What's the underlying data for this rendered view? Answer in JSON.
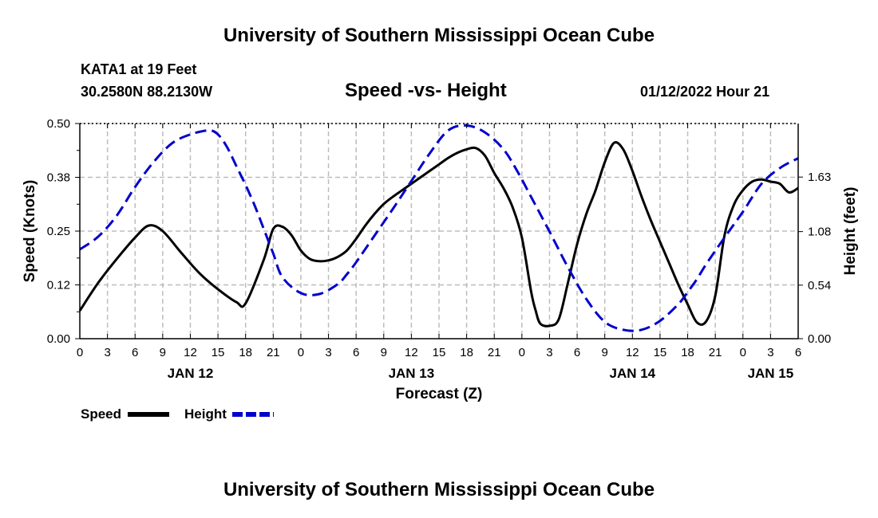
{
  "header": {
    "title": "University of Southern Mississippi Ocean Cube",
    "station": "KATA1 at 19 Feet",
    "coords": "30.2580N  88.2130W",
    "subtitle": "Speed -vs- Height",
    "datetime": "01/12/2022 Hour 21"
  },
  "footer": {
    "title": "University of Southern Mississippi Ocean Cube"
  },
  "legend": {
    "speed_label": "Speed",
    "height_label": "Height"
  },
  "colors": {
    "speed": "#000000",
    "height": "#0000cc",
    "grid": "#bdbdbd"
  },
  "chart_data": {
    "type": "line",
    "title": "Speed -vs- Height",
    "xlabel": "Forecast (Z)",
    "ylabel": "Speed (Knots)",
    "y2label": "Height (feet)",
    "x_unit": "hours from 01/12/2022 00Z",
    "xlim": [
      0,
      78
    ],
    "ylim": [
      0,
      0.5
    ],
    "y2lim": [
      0,
      2.17
    ],
    "yticks": [
      0.0,
      0.125,
      0.25,
      0.375,
      0.5
    ],
    "yticklabels": [
      "0.00",
      "0.12",
      "0.25",
      "0.38",
      "0.50"
    ],
    "y2ticks": [
      0.0,
      0.54,
      1.08,
      1.63
    ],
    "y2ticklabels": [
      "0.00",
      "0.54",
      "1.08",
      "1.63"
    ],
    "xticks": [
      0,
      3,
      6,
      9,
      12,
      15,
      18,
      21,
      24,
      27,
      30,
      33,
      36,
      39,
      42,
      45,
      48,
      51,
      54,
      57,
      60,
      63,
      66,
      69,
      72,
      75,
      78
    ],
    "xticklabels": [
      "0",
      "3",
      "6",
      "9",
      "12",
      "15",
      "18",
      "21",
      "0",
      "3",
      "6",
      "9",
      "12",
      "15",
      "18",
      "21",
      "0",
      "3",
      "6",
      "9",
      "12",
      "15",
      "18",
      "21",
      "0",
      "3",
      "6"
    ],
    "day_labels": [
      {
        "label": "JAN 12",
        "x": 12
      },
      {
        "label": "JAN 13",
        "x": 36
      },
      {
        "label": "JAN 14",
        "x": 60
      },
      {
        "label": "JAN 15",
        "x": 75
      }
    ],
    "legend_position": "bottom-left",
    "series": [
      {
        "name": "Speed",
        "axis": "left",
        "style": "solid",
        "x": [
          0,
          2,
          4,
          6,
          7.5,
          9,
          11,
          13,
          15,
          17,
          18,
          20,
          21,
          22,
          23,
          24,
          25,
          26,
          27,
          28,
          29,
          30,
          31,
          32,
          33,
          34,
          35,
          36,
          37,
          38,
          39,
          40,
          41,
          42,
          43,
          44,
          45,
          46,
          47,
          48,
          49,
          49.5,
          50,
          51,
          52,
          53,
          54,
          55,
          56,
          57,
          58,
          59,
          60,
          61,
          62,
          63,
          64,
          65,
          66,
          67,
          68,
          69,
          70,
          71,
          72,
          73,
          74,
          75,
          76,
          77,
          78
        ],
        "values": [
          0.065,
          0.13,
          0.185,
          0.235,
          0.263,
          0.25,
          0.2,
          0.152,
          0.115,
          0.085,
          0.082,
          0.185,
          0.255,
          0.26,
          0.24,
          0.205,
          0.185,
          0.18,
          0.182,
          0.19,
          0.205,
          0.232,
          0.263,
          0.29,
          0.313,
          0.33,
          0.345,
          0.36,
          0.375,
          0.39,
          0.405,
          0.42,
          0.432,
          0.44,
          0.443,
          0.425,
          0.385,
          0.35,
          0.305,
          0.235,
          0.11,
          0.065,
          0.035,
          0.03,
          0.045,
          0.13,
          0.22,
          0.29,
          0.345,
          0.41,
          0.455,
          0.44,
          0.39,
          0.33,
          0.275,
          0.225,
          0.175,
          0.125,
          0.08,
          0.038,
          0.04,
          0.1,
          0.24,
          0.31,
          0.345,
          0.365,
          0.37,
          0.365,
          0.36,
          0.34,
          0.35
        ]
      },
      {
        "name": "Height",
        "axis": "right",
        "style": "dashed",
        "x": [
          0,
          2,
          4,
          6,
          8,
          10,
          12,
          14,
          15,
          16,
          17,
          18,
          19,
          20,
          21,
          22,
          24,
          26,
          28,
          29,
          30,
          32,
          34,
          36,
          38,
          40,
          42,
          44,
          46,
          47.5,
          49,
          51,
          53,
          55,
          57,
          59,
          61,
          63,
          65,
          66,
          67,
          68,
          70,
          72,
          74,
          76,
          78
        ],
        "values": [
          0.9,
          1.03,
          1.24,
          1.53,
          1.78,
          1.97,
          2.06,
          2.1,
          2.06,
          1.93,
          1.74,
          1.55,
          1.34,
          1.1,
          0.86,
          0.62,
          0.46,
          0.45,
          0.55,
          0.65,
          0.77,
          1.04,
          1.31,
          1.59,
          1.87,
          2.1,
          2.15,
          2.08,
          1.91,
          1.69,
          1.43,
          1.08,
          0.72,
          0.4,
          0.17,
          0.09,
          0.09,
          0.18,
          0.35,
          0.47,
          0.6,
          0.75,
          1.02,
          1.28,
          1.56,
          1.72,
          1.82
        ]
      }
    ]
  }
}
